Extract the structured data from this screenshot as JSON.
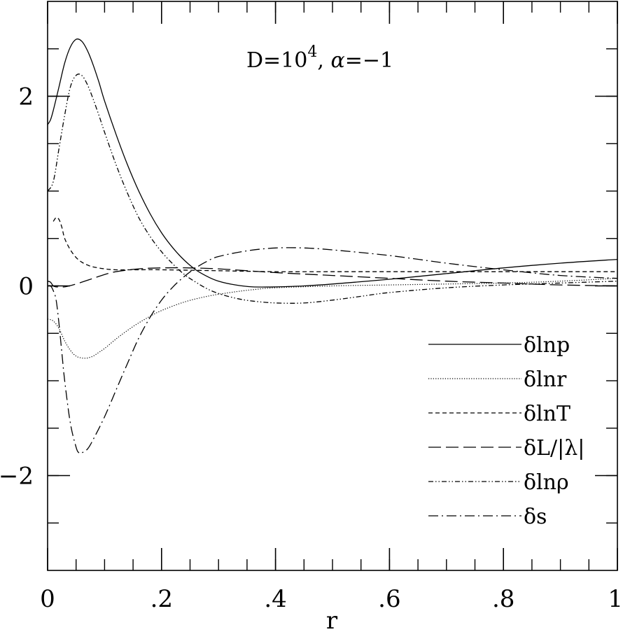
{
  "chart_data": {
    "type": "line",
    "annotation": {
      "text_parts": [
        "D=10",
        "4",
        ",  ",
        "α",
        "=−1"
      ]
    },
    "xlabel": "r",
    "ylabel": "",
    "xlim": [
      0,
      1
    ],
    "ylim": [
      -3,
      3
    ],
    "x_ticks": [
      {
        "value": 0,
        "label": "0"
      },
      {
        "value": 0.2,
        "label": ".2"
      },
      {
        "value": 0.4,
        "label": ".4"
      },
      {
        "value": 0.6,
        "label": ".6"
      },
      {
        "value": 0.8,
        "label": ".8"
      },
      {
        "value": 1,
        "label": "1"
      }
    ],
    "y_ticks": [
      {
        "value": 2,
        "label": "2"
      },
      {
        "value": 0,
        "label": "0"
      },
      {
        "value": -2,
        "label": "−2"
      }
    ],
    "x_minor_step": 0.05,
    "y_minor_step": 0.5,
    "grid": false,
    "legend_position": "lower-right",
    "series": [
      {
        "name": "δlnp",
        "style": "solid",
        "x": [
          0,
          0.005,
          0.01,
          0.02,
          0.03,
          0.04,
          0.05,
          0.06,
          0.07,
          0.08,
          0.09,
          0.1,
          0.12,
          0.14,
          0.16,
          0.18,
          0.2,
          0.22,
          0.24,
          0.26,
          0.28,
          0.3,
          0.33,
          0.36,
          0.4,
          0.45,
          0.5,
          0.6,
          0.7,
          0.8,
          0.9,
          1.0
        ],
        "y": [
          1.7,
          1.75,
          1.85,
          2.1,
          2.35,
          2.52,
          2.6,
          2.58,
          2.48,
          2.33,
          2.15,
          1.95,
          1.6,
          1.28,
          1.0,
          0.76,
          0.56,
          0.4,
          0.27,
          0.17,
          0.1,
          0.05,
          0.01,
          -0.01,
          -0.01,
          0.0,
          0.02,
          0.07,
          0.13,
          0.19,
          0.24,
          0.28
        ]
      },
      {
        "name": "δlnr",
        "style": "dotted",
        "x": [
          0,
          0.01,
          0.02,
          0.03,
          0.04,
          0.05,
          0.06,
          0.07,
          0.08,
          0.09,
          0.1,
          0.12,
          0.14,
          0.16,
          0.18,
          0.2,
          0.24,
          0.28,
          0.32,
          0.36,
          0.4,
          0.5,
          0.6,
          0.7,
          0.8,
          0.9,
          1.0
        ],
        "y": [
          -0.35,
          -0.37,
          -0.45,
          -0.58,
          -0.68,
          -0.74,
          -0.76,
          -0.76,
          -0.74,
          -0.7,
          -0.66,
          -0.56,
          -0.47,
          -0.39,
          -0.32,
          -0.26,
          -0.17,
          -0.11,
          -0.07,
          -0.04,
          -0.02,
          0.0,
          0.01,
          0.02,
          0.03,
          0.05,
          0.08
        ]
      },
      {
        "name": "δlnT",
        "style": "dashed",
        "x": [
          0.01,
          0.015,
          0.02,
          0.025,
          0.03,
          0.04,
          0.05,
          0.06,
          0.07,
          0.08,
          0.1,
          0.12,
          0.15,
          0.2,
          0.3,
          0.4,
          0.5,
          0.6,
          0.7,
          0.8,
          0.9,
          1.0
        ],
        "y": [
          0.68,
          0.72,
          0.7,
          0.62,
          0.5,
          0.38,
          0.3,
          0.25,
          0.22,
          0.2,
          0.18,
          0.17,
          0.17,
          0.17,
          0.16,
          0.15,
          0.15,
          0.15,
          0.15,
          0.15,
          0.15,
          0.15
        ]
      },
      {
        "name": "δL/|λ|",
        "style": "long-dashed",
        "x": [
          0,
          0.005,
          0.01,
          0.015,
          0.02,
          0.03,
          0.05,
          0.08,
          0.1,
          0.12,
          0.16,
          0.2,
          0.25,
          0.3,
          0.35,
          0.4,
          0.5,
          0.6,
          0.7,
          0.8,
          0.9,
          1.0
        ],
        "y": [
          0.05,
          0.04,
          0.0,
          -0.01,
          -0.01,
          -0.01,
          0.02,
          0.08,
          0.12,
          0.15,
          0.18,
          0.19,
          0.19,
          0.18,
          0.16,
          0.14,
          0.11,
          0.08,
          0.05,
          0.03,
          0.01,
          0.0
        ]
      },
      {
        "name": "δlnρ",
        "style": "dash-dot-dot",
        "x": [
          0,
          0.01,
          0.02,
          0.03,
          0.04,
          0.05,
          0.06,
          0.07,
          0.08,
          0.09,
          0.1,
          0.12,
          0.14,
          0.16,
          0.18,
          0.2,
          0.22,
          0.24,
          0.26,
          0.28,
          0.3,
          0.33,
          0.36,
          0.4,
          0.45,
          0.5,
          0.55,
          0.6,
          0.7,
          0.8,
          0.9,
          1.0
        ],
        "y": [
          1.0,
          1.1,
          1.45,
          1.8,
          2.1,
          2.22,
          2.22,
          2.12,
          1.97,
          1.8,
          1.62,
          1.28,
          0.98,
          0.72,
          0.52,
          0.36,
          0.23,
          0.12,
          0.04,
          -0.03,
          -0.08,
          -0.13,
          -0.16,
          -0.18,
          -0.18,
          -0.15,
          -0.11,
          -0.07,
          -0.02,
          0.01,
          0.03,
          0.05
        ]
      },
      {
        "name": "δs",
        "style": "dash-dot",
        "x": [
          0,
          0.005,
          0.01,
          0.015,
          0.02,
          0.025,
          0.03,
          0.04,
          0.05,
          0.055,
          0.06,
          0.07,
          0.08,
          0.1,
          0.12,
          0.14,
          0.16,
          0.18,
          0.2,
          0.22,
          0.24,
          0.26,
          0.28,
          0.3,
          0.35,
          0.4,
          0.45,
          0.5,
          0.6,
          0.7,
          0.8,
          0.9,
          1.0
        ],
        "y": [
          0.0,
          0.0,
          -0.05,
          -0.15,
          -0.4,
          -0.7,
          -1.0,
          -1.45,
          -1.7,
          -1.76,
          -1.76,
          -1.72,
          -1.62,
          -1.38,
          -1.1,
          -0.82,
          -0.55,
          -0.33,
          -0.15,
          -0.01,
          0.1,
          0.19,
          0.26,
          0.31,
          0.37,
          0.4,
          0.4,
          0.38,
          0.32,
          0.24,
          0.17,
          0.11,
          0.08
        ]
      }
    ]
  }
}
